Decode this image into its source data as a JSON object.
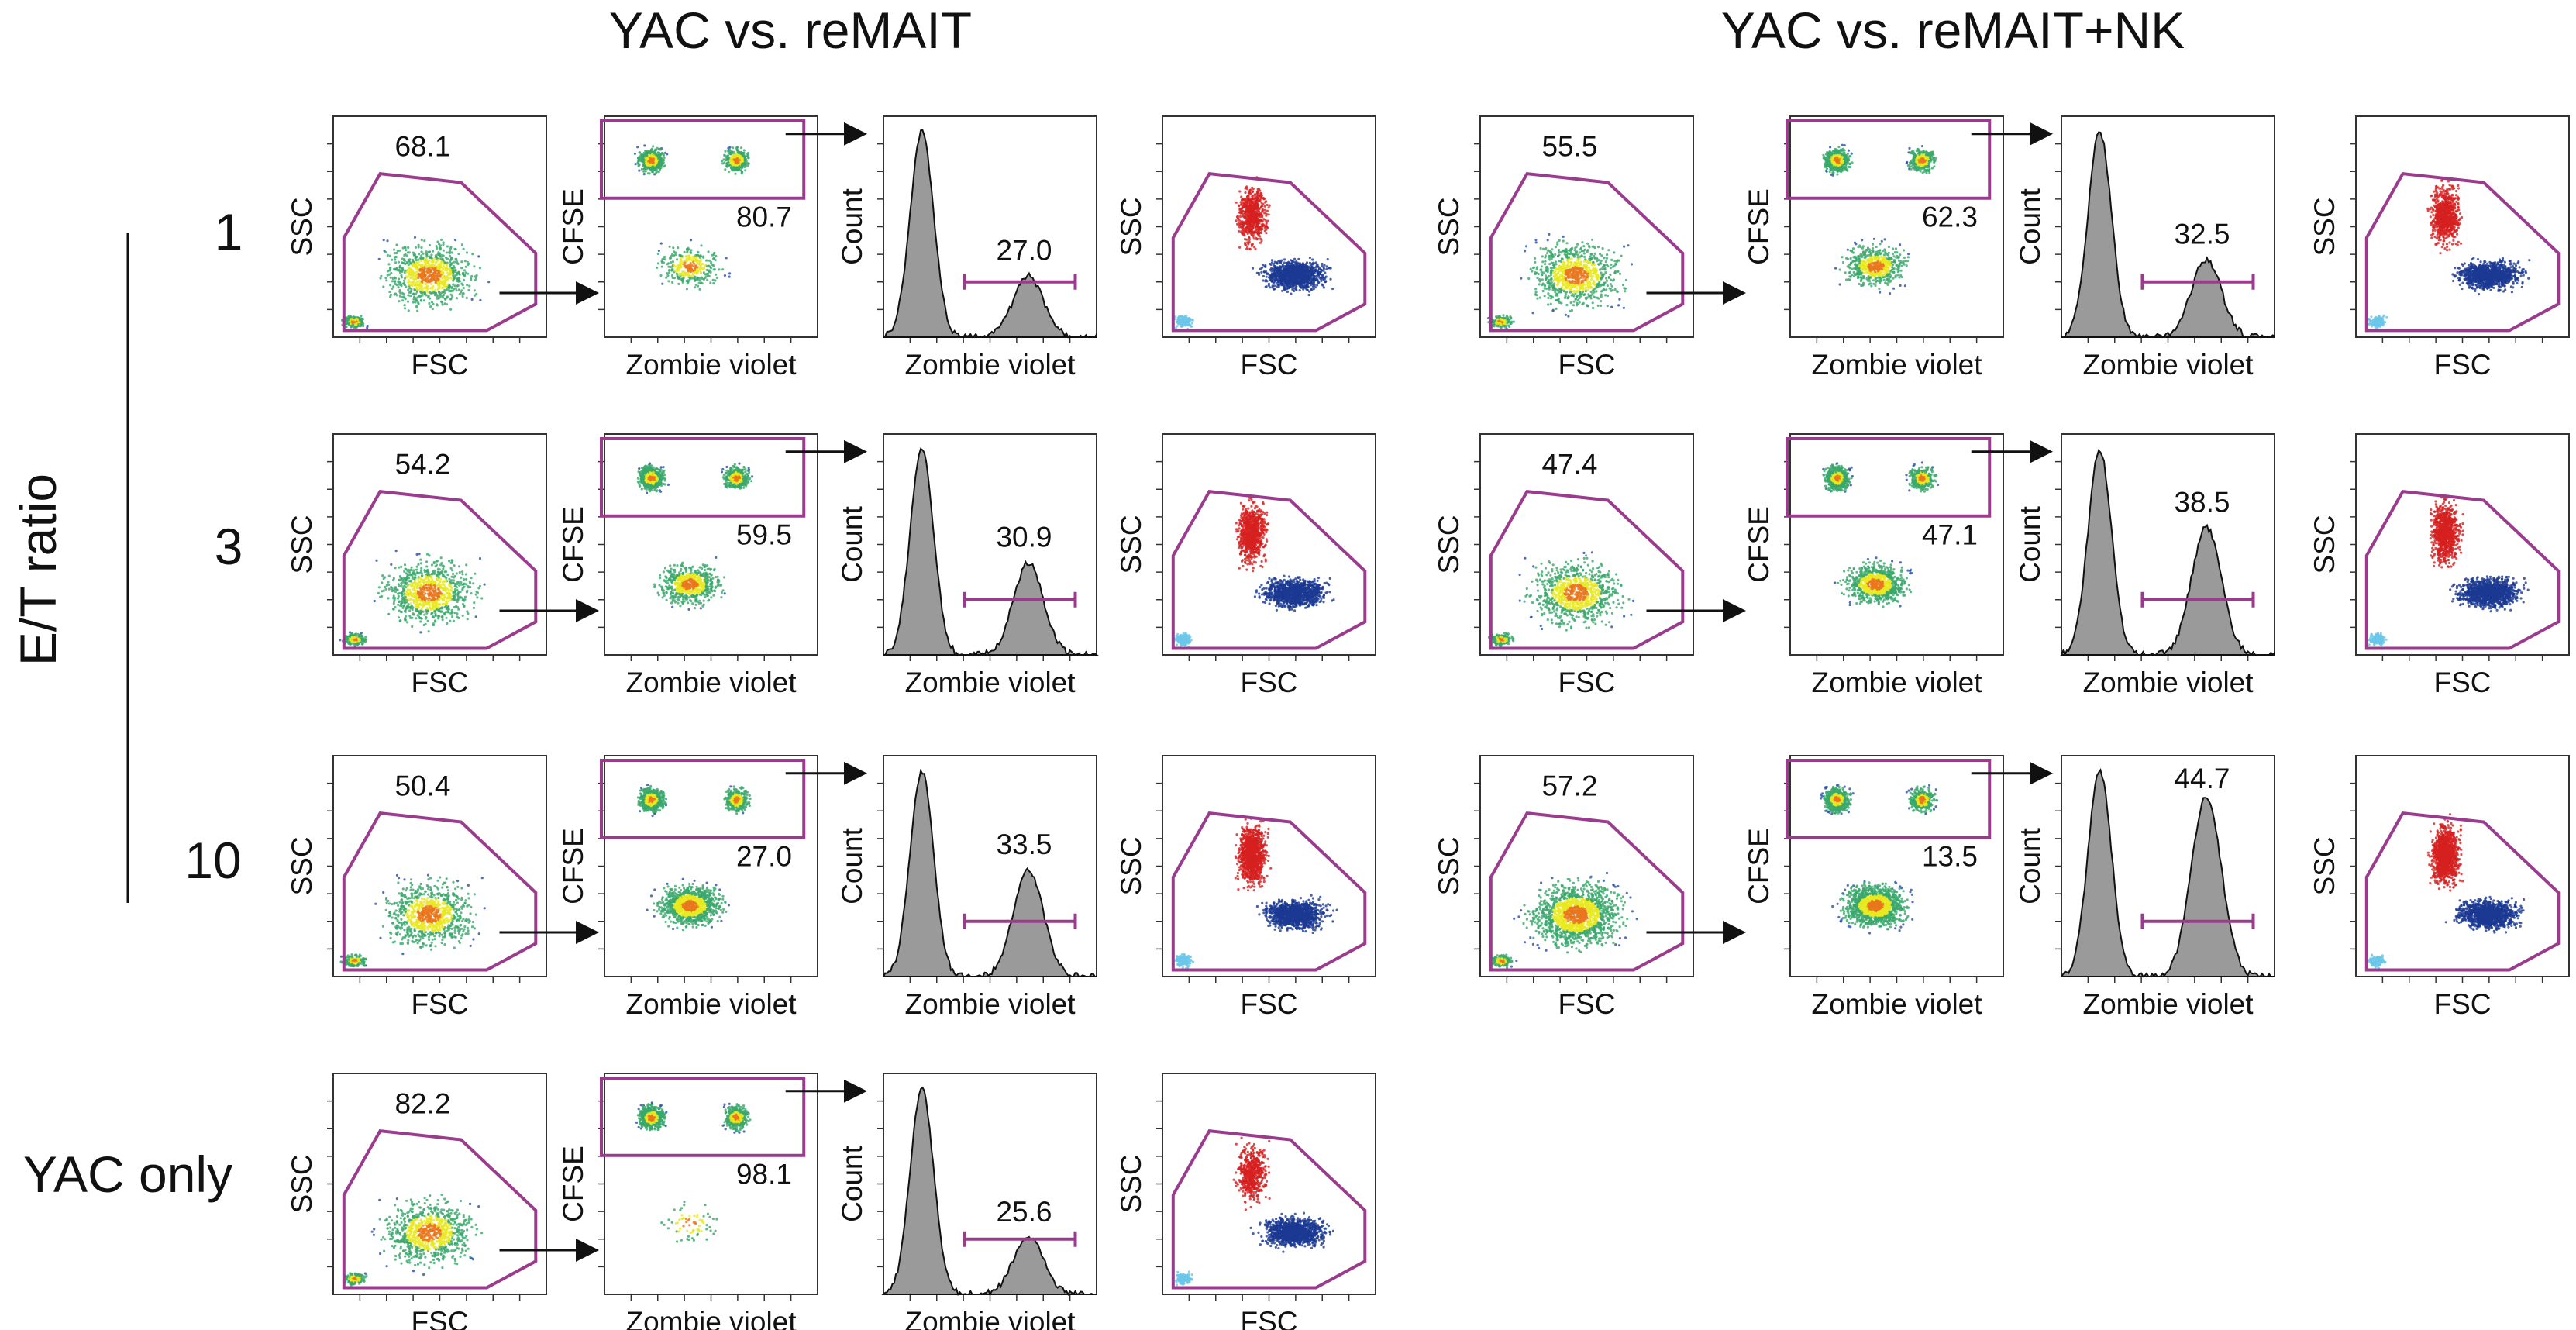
{
  "figure": {
    "left_title": "YAC vs. reMAIT",
    "right_title": "YAC vs. reMAIT+NK",
    "y_axis_title": "E/T ratio",
    "row_labels": [
      "1",
      "3",
      "10",
      "YAC only"
    ],
    "axis_labels": {
      "ssc": "SSC",
      "fsc": "FSC",
      "cfse": "CFSE",
      "zombie": "Zombie violet",
      "count": "Count"
    }
  },
  "chart_data": [
    {
      "type": "scatter",
      "panel_set": "YAC vs. reMAIT",
      "row": "1",
      "fsc_ssc_gate": "68.1",
      "cfse_gate": "80.7",
      "zombie_positive": "27.0",
      "hist_peaks": {
        "live_height": 1.0,
        "dead_height": 0.3
      }
    },
    {
      "type": "scatter",
      "panel_set": "YAC vs. reMAIT",
      "row": "3",
      "fsc_ssc_gate": "54.2",
      "cfse_gate": "59.5",
      "zombie_positive": "30.9",
      "hist_peaks": {
        "live_height": 1.0,
        "dead_height": 0.45
      }
    },
    {
      "type": "scatter",
      "panel_set": "YAC vs. reMAIT",
      "row": "10",
      "fsc_ssc_gate": "50.4",
      "cfse_gate": "27.0",
      "zombie_positive": "33.5",
      "hist_peaks": {
        "live_height": 1.0,
        "dead_height": 0.52
      }
    },
    {
      "type": "scatter",
      "panel_set": "YAC vs. reMAIT",
      "row": "YAC only",
      "fsc_ssc_gate": "82.2",
      "cfse_gate": "98.1",
      "zombie_positive": "25.6",
      "hist_peaks": {
        "live_height": 1.0,
        "dead_height": 0.28
      }
    },
    {
      "type": "scatter",
      "panel_set": "YAC vs. reMAIT+NK",
      "row": "1",
      "fsc_ssc_gate": "55.5",
      "cfse_gate": "62.3",
      "zombie_positive": "32.5",
      "hist_peaks": {
        "live_height": 1.0,
        "dead_height": 0.38
      }
    },
    {
      "type": "scatter",
      "panel_set": "YAC vs. reMAIT+NK",
      "row": "3",
      "fsc_ssc_gate": "47.4",
      "cfse_gate": "47.1",
      "zombie_positive": "38.5",
      "hist_peaks": {
        "live_height": 1.0,
        "dead_height": 0.62
      }
    },
    {
      "type": "scatter",
      "panel_set": "YAC vs. reMAIT+NK",
      "row": "10",
      "fsc_ssc_gate": "57.2",
      "cfse_gate": "13.5",
      "zombie_positive": "44.7",
      "hist_peaks": {
        "live_height": 1.0,
        "dead_height": 0.88
      }
    }
  ],
  "colors": {
    "gate": "#9B3B8E",
    "hist_fill": "#9a9a9a",
    "dense": "#e8e820",
    "mid": "#3aa86b",
    "sparse": "#2b4fa8",
    "overlay_red": "#d62020",
    "overlay_blue": "#1b3a92",
    "overlay_cyan": "#6cc7e8"
  }
}
